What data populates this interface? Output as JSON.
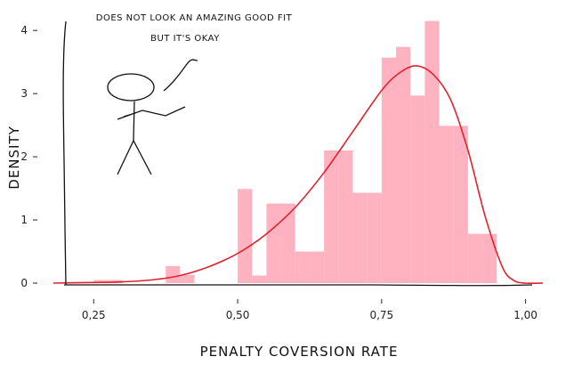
{
  "chart_data": {
    "type": "bar",
    "style": "xkcd",
    "xlabel": "PENALTY COVERSION RATE",
    "ylabel": "DENSITY",
    "xlim": [
      0.18,
      1.03
    ],
    "ylim": [
      0,
      4.2
    ],
    "x_ticks": [
      0.25,
      0.5,
      0.75,
      1.0
    ],
    "x_tick_labels": [
      "0,25",
      "0,50",
      "0,75",
      "1,00"
    ],
    "y_ticks": [
      0,
      1,
      2,
      3,
      4
    ],
    "y_tick_labels": [
      "0",
      "1",
      "2",
      "3",
      "4"
    ],
    "bar_color": "#ffb3c1",
    "line_color": "#e0232e",
    "grid": false,
    "annotation": {
      "lines": [
        "DOES NOT LOOK AN AMAZING GOOD FIT",
        "BUT IT'S OKAY"
      ]
    },
    "histogram": {
      "bin_edges": [
        0.175,
        0.2,
        0.225,
        0.25,
        0.275,
        0.3,
        0.325,
        0.35,
        0.375,
        0.4,
        0.425,
        0.45,
        0.475,
        0.5,
        0.525,
        0.55,
        0.575,
        0.6,
        0.625,
        0.65,
        0.675,
        0.7,
        0.725,
        0.75,
        0.775,
        0.8,
        0.825,
        0.85,
        0.875,
        0.9,
        0.925,
        0.95,
        0.975
      ],
      "density": [
        0,
        0,
        0,
        0.05,
        0.05,
        0,
        0,
        0,
        0.27,
        0.13,
        0,
        0,
        0,
        1.49,
        0.12,
        1.26,
        1.26,
        0.5,
        0.5,
        2.1,
        2.1,
        1.43,
        1.43,
        3.57,
        3.74,
        2.97,
        4.15,
        2.49,
        2.49,
        0.78,
        0.78,
        0
      ]
    },
    "density_curve": {
      "x": [
        0.18,
        0.25,
        0.3,
        0.35,
        0.4,
        0.45,
        0.5,
        0.55,
        0.6,
        0.65,
        0.7,
        0.75,
        0.78,
        0.81,
        0.84,
        0.87,
        0.9,
        0.93,
        0.96,
        0.98,
        1.0,
        1.03
      ],
      "y": [
        0,
        0.01,
        0.02,
        0.05,
        0.12,
        0.26,
        0.47,
        0.78,
        1.2,
        1.75,
        2.4,
        3.05,
        3.32,
        3.44,
        3.3,
        2.9,
        2.1,
        1.05,
        0.25,
        0.04,
        0.0,
        0
      ]
    }
  }
}
